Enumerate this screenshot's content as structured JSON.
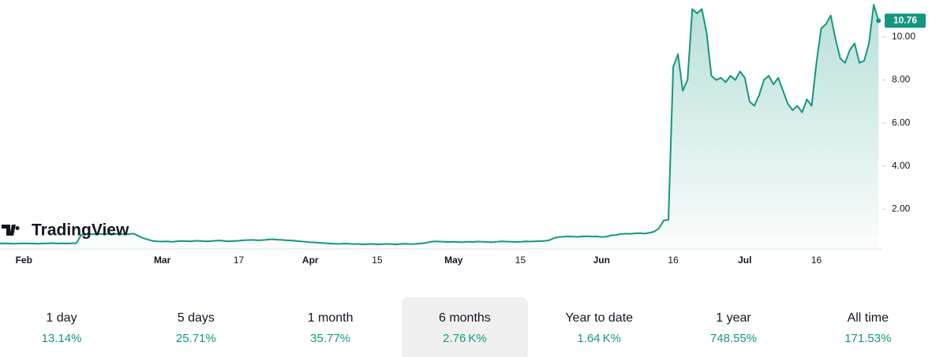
{
  "chart_data": {
    "type": "line",
    "watermark": "TradingView",
    "color": "#14977f",
    "ylim": [
      0.18,
      11.72
    ],
    "yticks": [
      {
        "value": 2,
        "label": "2.00"
      },
      {
        "value": 4,
        "label": "4.00"
      },
      {
        "value": 6,
        "label": "6.00"
      },
      {
        "value": 8,
        "label": "8.00"
      },
      {
        "value": 10,
        "label": "10.00"
      }
    ],
    "categories": [
      null,
      null,
      null,
      null,
      null,
      "Feb",
      null,
      null,
      null,
      null,
      null,
      null,
      null,
      null,
      null,
      null,
      null,
      null,
      null,
      null,
      null,
      null,
      null,
      null,
      null,
      null,
      null,
      null,
      null,
      null,
      null,
      null,
      null,
      null,
      "Mar",
      null,
      null,
      null,
      null,
      null,
      null,
      null,
      null,
      null,
      null,
      null,
      null,
      null,
      null,
      null,
      "17",
      null,
      null,
      null,
      null,
      null,
      null,
      null,
      null,
      null,
      null,
      null,
      null,
      null,
      null,
      "Apr",
      null,
      null,
      null,
      null,
      null,
      null,
      null,
      null,
      null,
      null,
      null,
      null,
      null,
      "15",
      null,
      null,
      null,
      null,
      null,
      null,
      null,
      null,
      null,
      null,
      null,
      null,
      null,
      null,
      null,
      "May",
      null,
      null,
      null,
      null,
      null,
      null,
      null,
      null,
      null,
      null,
      null,
      null,
      null,
      "15",
      null,
      null,
      null,
      null,
      null,
      null,
      null,
      null,
      null,
      null,
      null,
      null,
      null,
      null,
      null,
      null,
      "Jun",
      null,
      null,
      null,
      null,
      null,
      null,
      null,
      null,
      null,
      null,
      null,
      null,
      null,
      null,
      "16",
      null,
      null,
      null,
      null,
      null,
      null,
      null,
      null,
      null,
      null,
      null,
      null,
      null,
      null,
      "Jul",
      null,
      null,
      null,
      null,
      null,
      null,
      null,
      null,
      null,
      null,
      null,
      null,
      null,
      null,
      "16",
      null,
      null,
      null,
      null,
      null,
      null,
      null,
      null,
      null,
      null,
      null,
      null,
      null
    ],
    "values": [
      0.4,
      0.41,
      0.4,
      0.39,
      0.4,
      0.41,
      0.4,
      0.4,
      0.39,
      0.4,
      0.41,
      0.42,
      0.4,
      0.41,
      0.4,
      0.41,
      0.42,
      0.8,
      0.82,
      0.84,
      0.83,
      0.85,
      0.84,
      0.86,
      0.84,
      0.85,
      0.83,
      0.84,
      0.86,
      0.75,
      0.65,
      0.58,
      0.52,
      0.5,
      0.49,
      0.5,
      0.48,
      0.5,
      0.52,
      0.51,
      0.5,
      0.53,
      0.52,
      0.5,
      0.51,
      0.53,
      0.54,
      0.52,
      0.5,
      0.52,
      0.53,
      0.55,
      0.56,
      0.57,
      0.55,
      0.56,
      0.58,
      0.6,
      0.58,
      0.57,
      0.55,
      0.54,
      0.52,
      0.5,
      0.48,
      0.46,
      0.45,
      0.43,
      0.42,
      0.4,
      0.39,
      0.38,
      0.4,
      0.39,
      0.37,
      0.38,
      0.36,
      0.37,
      0.38,
      0.36,
      0.37,
      0.38,
      0.37,
      0.36,
      0.38,
      0.39,
      0.37,
      0.38,
      0.4,
      0.42,
      0.47,
      0.5,
      0.49,
      0.48,
      0.47,
      0.48,
      0.47,
      0.46,
      0.48,
      0.47,
      0.49,
      0.48,
      0.47,
      0.46,
      0.48,
      0.5,
      0.49,
      0.48,
      0.47,
      0.48,
      0.5,
      0.49,
      0.5,
      0.51,
      0.52,
      0.55,
      0.65,
      0.7,
      0.72,
      0.73,
      0.72,
      0.71,
      0.73,
      0.74,
      0.72,
      0.73,
      0.7,
      0.72,
      0.78,
      0.8,
      0.84,
      0.86,
      0.85,
      0.87,
      0.88,
      0.86,
      0.9,
      0.95,
      1.1,
      1.47,
      1.5,
      8.6,
      9.2,
      7.5,
      8.0,
      11.3,
      11.1,
      11.3,
      10.2,
      8.2,
      8.0,
      8.1,
      7.9,
      8.2,
      8.0,
      8.4,
      8.1,
      7.0,
      6.8,
      7.3,
      8.0,
      8.2,
      7.8,
      8.1,
      7.5,
      6.9,
      6.6,
      6.8,
      6.5,
      7.1,
      6.8,
      8.8,
      10.4,
      10.6,
      11.0,
      9.9,
      9.0,
      8.8,
      9.4,
      9.7,
      8.8,
      8.9,
      9.7,
      11.5,
      10.76
    ]
  },
  "periods": [
    {
      "label": "1 day",
      "change": "13.14%"
    },
    {
      "label": "5 days",
      "change": "25.71%"
    },
    {
      "label": "1 month",
      "change": "35.77%"
    },
    {
      "label": "6 months",
      "change": "2.76 K%",
      "selected": true
    },
    {
      "label": "Year to date",
      "change": "1.64 K%"
    },
    {
      "label": "1 year",
      "change": "748.55%"
    },
    {
      "label": "All time",
      "change": "171.53%"
    }
  ]
}
